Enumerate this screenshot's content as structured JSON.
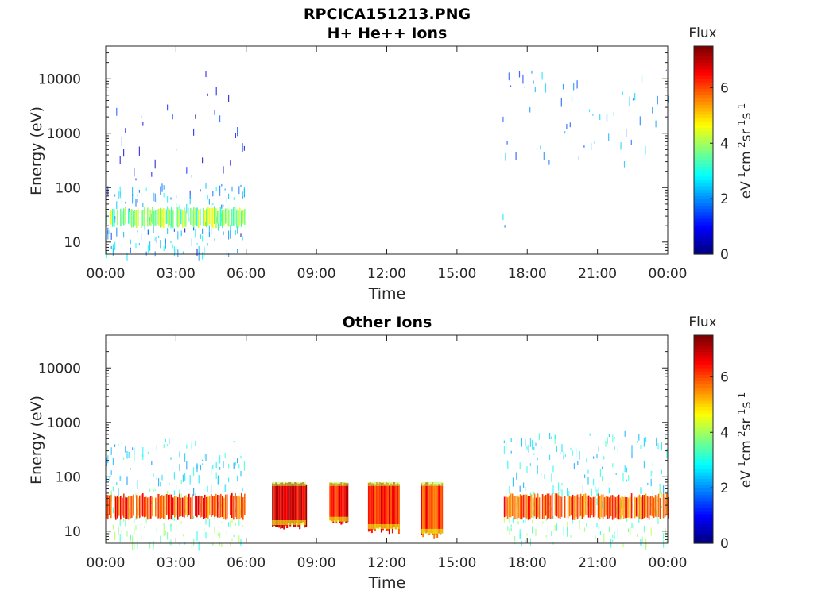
{
  "figure_title": "RPCICA151213.PNG",
  "chart_data": [
    {
      "type": "heatmap",
      "title": "H+ He++ Ions",
      "xlabel": "Time",
      "ylabel": "Energy (eV)",
      "x_ticks": [
        "00:00",
        "03:00",
        "06:00",
        "09:00",
        "12:00",
        "15:00",
        "18:00",
        "21:00",
        "00:00"
      ],
      "xlim_hours": [
        0,
        24
      ],
      "y_ticks": [
        "10",
        "100",
        "1000",
        "10000"
      ],
      "yscale": "log",
      "ylim": [
        6,
        40000
      ],
      "colorbar": {
        "label": "Flux",
        "unit": "eV^-1 cm^-2 sr^-1 s^-1",
        "ticks": [
          "0",
          "2",
          "4",
          "6"
        ],
        "range": [
          0,
          7.5
        ],
        "colormap": "jet"
      },
      "regions": [
        {
          "t_start": 0.0,
          "t_end": 5.95,
          "e_low": 6,
          "e_high": 15000,
          "flux": 0.9,
          "density": 0.16,
          "kind": "sparse"
        },
        {
          "t_start": 0.0,
          "t_end": 5.95,
          "e_low": 6,
          "e_high": 120,
          "flux": 2.3,
          "density": 0.45,
          "kind": "sparse"
        },
        {
          "t_start": 0.0,
          "t_end": 5.95,
          "e_low": 18,
          "e_high": 45,
          "flux": 3.9,
          "density": 0.9,
          "kind": "band"
        },
        {
          "t_start": 16.95,
          "t_end": 17.05,
          "e_low": 6,
          "e_high": 10000,
          "flux": 2.2,
          "density": 0.5,
          "kind": "sparse"
        },
        {
          "t_start": 17.05,
          "t_end": 24.0,
          "e_low": 300,
          "e_high": 15000,
          "flux": 2.0,
          "density": 0.1,
          "kind": "sparse"
        }
      ]
    },
    {
      "type": "heatmap",
      "title": "Other Ions",
      "xlabel": "Time",
      "ylabel": "Energy (eV)",
      "x_ticks": [
        "00:00",
        "03:00",
        "06:00",
        "09:00",
        "12:00",
        "15:00",
        "18:00",
        "21:00",
        "00:00"
      ],
      "xlim_hours": [
        0,
        24
      ],
      "y_ticks": [
        "10",
        "100",
        "1000",
        "10000"
      ],
      "yscale": "log",
      "ylim": [
        6,
        40000
      ],
      "colorbar": {
        "label": "Flux",
        "unit": "eV^-1 cm^-2 sr^-1 s^-1",
        "ticks": [
          "0",
          "2",
          "4",
          "6"
        ],
        "range": [
          0,
          7.5
        ],
        "colormap": "jet"
      },
      "regions": [
        {
          "t_start": 0.0,
          "t_end": 5.95,
          "e_low": 500,
          "e_high": 15000,
          "flux": 2.0,
          "density": 0.05,
          "kind": "sparse"
        },
        {
          "t_start": 0.0,
          "t_end": 5.95,
          "e_low": 60,
          "e_high": 500,
          "flux": 2.6,
          "density": 0.3,
          "kind": "sparse"
        },
        {
          "t_start": 0.0,
          "t_end": 5.95,
          "e_low": 6,
          "e_high": 60,
          "flux": 3.5,
          "density": 0.55,
          "kind": "sparse"
        },
        {
          "t_start": 0.0,
          "t_end": 5.95,
          "e_low": 16,
          "e_high": 50,
          "flux": 6.0,
          "density": 0.95,
          "kind": "band"
        },
        {
          "t_start": 7.1,
          "t_end": 8.55,
          "e_low": 13,
          "e_high": 80,
          "flux": 6.8,
          "density": 1.0,
          "kind": "block"
        },
        {
          "t_start": 9.55,
          "t_end": 10.35,
          "e_low": 15,
          "e_high": 80,
          "flux": 6.5,
          "density": 1.0,
          "kind": "block"
        },
        {
          "t_start": 11.2,
          "t_end": 12.55,
          "e_low": 11,
          "e_high": 80,
          "flux": 6.4,
          "density": 1.0,
          "kind": "block"
        },
        {
          "t_start": 13.45,
          "t_end": 14.4,
          "e_low": 9,
          "e_high": 80,
          "flux": 6.2,
          "density": 1.0,
          "kind": "block"
        },
        {
          "t_start": 17.0,
          "t_end": 24.0,
          "e_low": 500,
          "e_high": 15000,
          "flux": 2.0,
          "density": 0.05,
          "kind": "sparse"
        },
        {
          "t_start": 17.0,
          "t_end": 24.0,
          "e_low": 60,
          "e_high": 700,
          "flux": 2.6,
          "density": 0.3,
          "kind": "sparse"
        },
        {
          "t_start": 17.0,
          "t_end": 24.0,
          "e_low": 6,
          "e_high": 60,
          "flux": 3.5,
          "density": 0.55,
          "kind": "sparse"
        },
        {
          "t_start": 17.0,
          "t_end": 24.0,
          "e_low": 16,
          "e_high": 50,
          "flux": 6.0,
          "density": 0.95,
          "kind": "band"
        }
      ]
    }
  ]
}
